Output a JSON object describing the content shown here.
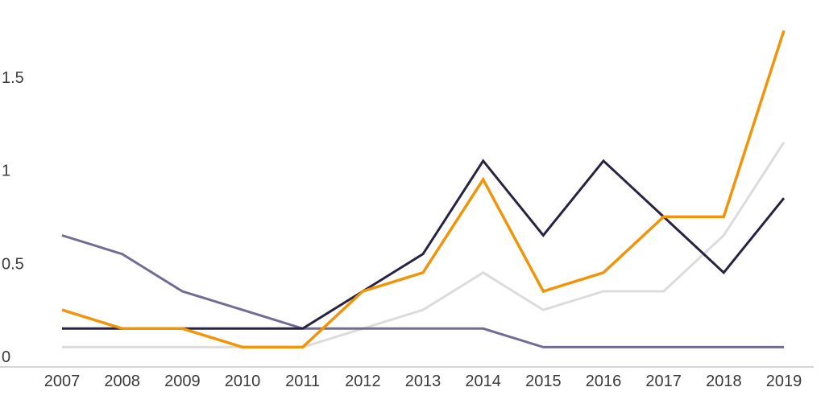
{
  "chart_data": {
    "type": "line",
    "categories": [
      "2007",
      "2008",
      "2009",
      "2010",
      "2011",
      "2012",
      "2013",
      "2014",
      "2015",
      "2016",
      "2017",
      "2018",
      "2019"
    ],
    "y_tick_labels": [
      "0",
      "0.5",
      "1",
      "1.5"
    ],
    "y_tick_values": [
      0,
      0.5,
      1,
      1.5
    ],
    "ylim": [
      0,
      1.8
    ],
    "grid": false,
    "legend": "none",
    "title": "",
    "xlabel": "",
    "ylabel": "",
    "axis_color": "#d4d4d4",
    "tick_label_color": "#3a3a3a",
    "series": [
      {
        "name": "light-gray-series",
        "color": "#dcdcdc",
        "values": [
          0.05,
          0.05,
          0.05,
          0.05,
          0.05,
          0.15,
          0.25,
          0.45,
          0.25,
          0.35,
          0.35,
          0.65,
          1.15
        ]
      },
      {
        "name": "muted-purple-series",
        "color": "#726c94",
        "values": [
          0.65,
          0.55,
          0.35,
          0.25,
          0.15,
          0.15,
          0.15,
          0.15,
          0.05,
          0.05,
          0.05,
          0.05,
          0.05
        ]
      },
      {
        "name": "dark-navy-series",
        "color": "#272343",
        "values": [
          0.15,
          0.15,
          0.15,
          0.15,
          0.15,
          0.35,
          0.55,
          1.05,
          0.65,
          1.05,
          0.75,
          0.45,
          0.85
        ]
      },
      {
        "name": "orange-series",
        "color": "#f09409",
        "values": [
          0.25,
          0.15,
          0.15,
          0.05,
          0.05,
          0.35,
          0.45,
          0.95,
          0.35,
          0.45,
          0.75,
          0.75,
          1.75
        ]
      }
    ],
    "draw_order_note": "series listed back-to-front"
  }
}
